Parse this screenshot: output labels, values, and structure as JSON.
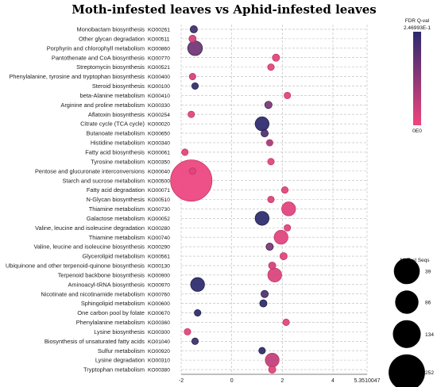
{
  "chart_data": {
    "type": "scatter",
    "title": "Moth-infested leaves vs Aphid-infested leaves",
    "xlabel": "",
    "ylabel": "",
    "xlim": [
      -2,
      5.3510047
    ],
    "x_ticks": [
      -2,
      0,
      2,
      4
    ],
    "x_max_label": "5.3510047",
    "grid": true,
    "color_legend": {
      "title": "FDR Q-val",
      "max_label": "2.46993E-1",
      "min_label": "0E0",
      "high_color": "#2b2a6e",
      "low_color": "#f0457e",
      "placement": "top-right"
    },
    "size_legend": {
      "title": "N° Test Seqs",
      "placement": "right",
      "entries": [
        39,
        86,
        134,
        252
      ]
    },
    "points": [
      {
        "pathway": "Monobactam biosynthesis",
        "ko": "KO00261",
        "x": -1.5,
        "n_seqs": 4,
        "q": 0.22
      },
      {
        "pathway": "Other glycan degradation",
        "ko": "KO00511",
        "x": -1.55,
        "n_seqs": 4,
        "q": 0.04
      },
      {
        "pathway": "Porphyrin and chlorophyll metabolism",
        "ko": "KO00860",
        "x": -1.45,
        "n_seqs": 25,
        "q": 0.16
      },
      {
        "pathway": "Pantothenate and CoA biosynthesis",
        "ko": "KO00770",
        "x": 1.75,
        "n_seqs": 4,
        "q": 0.02
      },
      {
        "pathway": "Streptomycin biosynthesis",
        "ko": "KO00521",
        "x": 1.55,
        "n_seqs": 3,
        "q": 0.02
      },
      {
        "pathway": "Phenylalanine, tyrosine and tryptophan biosynthesis",
        "ko": "KO00400",
        "x": -1.55,
        "n_seqs": 3,
        "q": 0.04
      },
      {
        "pathway": "Steroid biosynthesis",
        "ko": "KO00100",
        "x": -1.45,
        "n_seqs": 3,
        "q": 0.24
      },
      {
        "pathway": "beta-Alanine metabolism",
        "ko": "KO00410",
        "x": 2.2,
        "n_seqs": 3,
        "q": 0.02
      },
      {
        "pathway": "Arginine and proline metabolism",
        "ko": "KO00330",
        "x": 1.45,
        "n_seqs": 4,
        "q": 0.14
      },
      {
        "pathway": "Aflatoxin biosynthesis",
        "ko": "KO00254",
        "x": -1.6,
        "n_seqs": 3,
        "q": 0.02
      },
      {
        "pathway": "Citrate cycle (TCA cycle)",
        "ko": "KO00020",
        "x": 1.2,
        "n_seqs": 22,
        "q": 0.246
      },
      {
        "pathway": "Butanoate metabolism",
        "ko": "KO00650",
        "x": 1.3,
        "n_seqs": 4,
        "q": 0.2
      },
      {
        "pathway": "Histidine metabolism",
        "ko": "KO00340",
        "x": 1.5,
        "n_seqs": 3,
        "q": 0.1
      },
      {
        "pathway": "Fatty acid biosynthesis",
        "ko": "KO00061",
        "x": -1.85,
        "n_seqs": 3,
        "q": 0.02
      },
      {
        "pathway": "Tyrosine metabolism",
        "ko": "KO00350",
        "x": 1.55,
        "n_seqs": 3,
        "q": 0.02
      },
      {
        "pathway": "Pentose and glucuronate interconversions",
        "ko": "KO00040",
        "x": -1.55,
        "n_seqs": 3,
        "q": 0.02
      },
      {
        "pathway": "Starch and sucrose metabolism",
        "ko": "KO00500",
        "x": -1.6,
        "n_seqs": 252,
        "q": 0.005
      },
      {
        "pathway": "Fatty acid degradation",
        "ko": "KO00071",
        "x": 2.1,
        "n_seqs": 3,
        "q": 0.02
      },
      {
        "pathway": "N-Glycan biosynthesis",
        "ko": "KO00510",
        "x": 1.55,
        "n_seqs": 3,
        "q": 0.03
      },
      {
        "pathway": "Thiamine metabolism",
        "ko": "KO00730",
        "x": 2.25,
        "n_seqs": 22,
        "q": 0.02
      },
      {
        "pathway": "Galactose metabolism",
        "ko": "KO00052",
        "x": 1.2,
        "n_seqs": 22,
        "q": 0.246
      },
      {
        "pathway": "Valine, leucine and isoleucine degradation",
        "ko": "KO00280",
        "x": 2.2,
        "n_seqs": 3,
        "q": 0.02
      },
      {
        "pathway": "Thiamine metabolism",
        "ko": "KO00740",
        "x": 1.95,
        "n_seqs": 22,
        "q": 0.02
      },
      {
        "pathway": "Valine, leucine and isoleucine biosynthesis",
        "ko": "KO00290",
        "x": 1.5,
        "n_seqs": 4,
        "q": 0.14
      },
      {
        "pathway": "Glycerolipid metabolism",
        "ko": "KO00561",
        "x": 2.05,
        "n_seqs": 4,
        "q": 0.02
      },
      {
        "pathway": "Ubiquinone and other terpenoid-quinone biosynthesis",
        "ko": "KO00130",
        "x": 1.6,
        "n_seqs": 4,
        "q": 0.04
      },
      {
        "pathway": "Terpenoid backbone biosynthesis",
        "ko": "KO00900",
        "x": 1.7,
        "n_seqs": 22,
        "q": 0.03
      },
      {
        "pathway": "Aminoacyl-tRNA biosynthesis",
        "ko": "KO00970",
        "x": -1.35,
        "n_seqs": 22,
        "q": 0.246
      },
      {
        "pathway": "Nicotinate and nicotinamide metabolism",
        "ko": "KO00760",
        "x": 1.3,
        "n_seqs": 4,
        "q": 0.2
      },
      {
        "pathway": "Sphingolipid metabolism",
        "ko": "KO00600",
        "x": 1.25,
        "n_seqs": 4,
        "q": 0.246
      },
      {
        "pathway": "One carbon pool by folate",
        "ko": "KO00670",
        "x": -1.35,
        "n_seqs": 3,
        "q": 0.246
      },
      {
        "pathway": "Phenylalanine metabolism",
        "ko": "KO00360",
        "x": 2.15,
        "n_seqs": 3,
        "q": 0.02
      },
      {
        "pathway": "Lysine biosynthesis",
        "ko": "KO00300",
        "x": -1.75,
        "n_seqs": 3,
        "q": 0.02
      },
      {
        "pathway": "Biosynthesis of unsaturated fatty acids",
        "ko": "KO01040",
        "x": -1.45,
        "n_seqs": 3,
        "q": 0.22
      },
      {
        "pathway": "Sulfur metabolism",
        "ko": "KO00920",
        "x": 1.2,
        "n_seqs": 3,
        "q": 0.246
      },
      {
        "pathway": "Lysine degradation",
        "ko": "KO00310",
        "x": 1.6,
        "n_seqs": 22,
        "q": 0.06
      },
      {
        "pathway": "Tryptophan metabolism",
        "ko": "KO00380",
        "x": 1.6,
        "n_seqs": 4,
        "q": 0.02
      }
    ]
  }
}
